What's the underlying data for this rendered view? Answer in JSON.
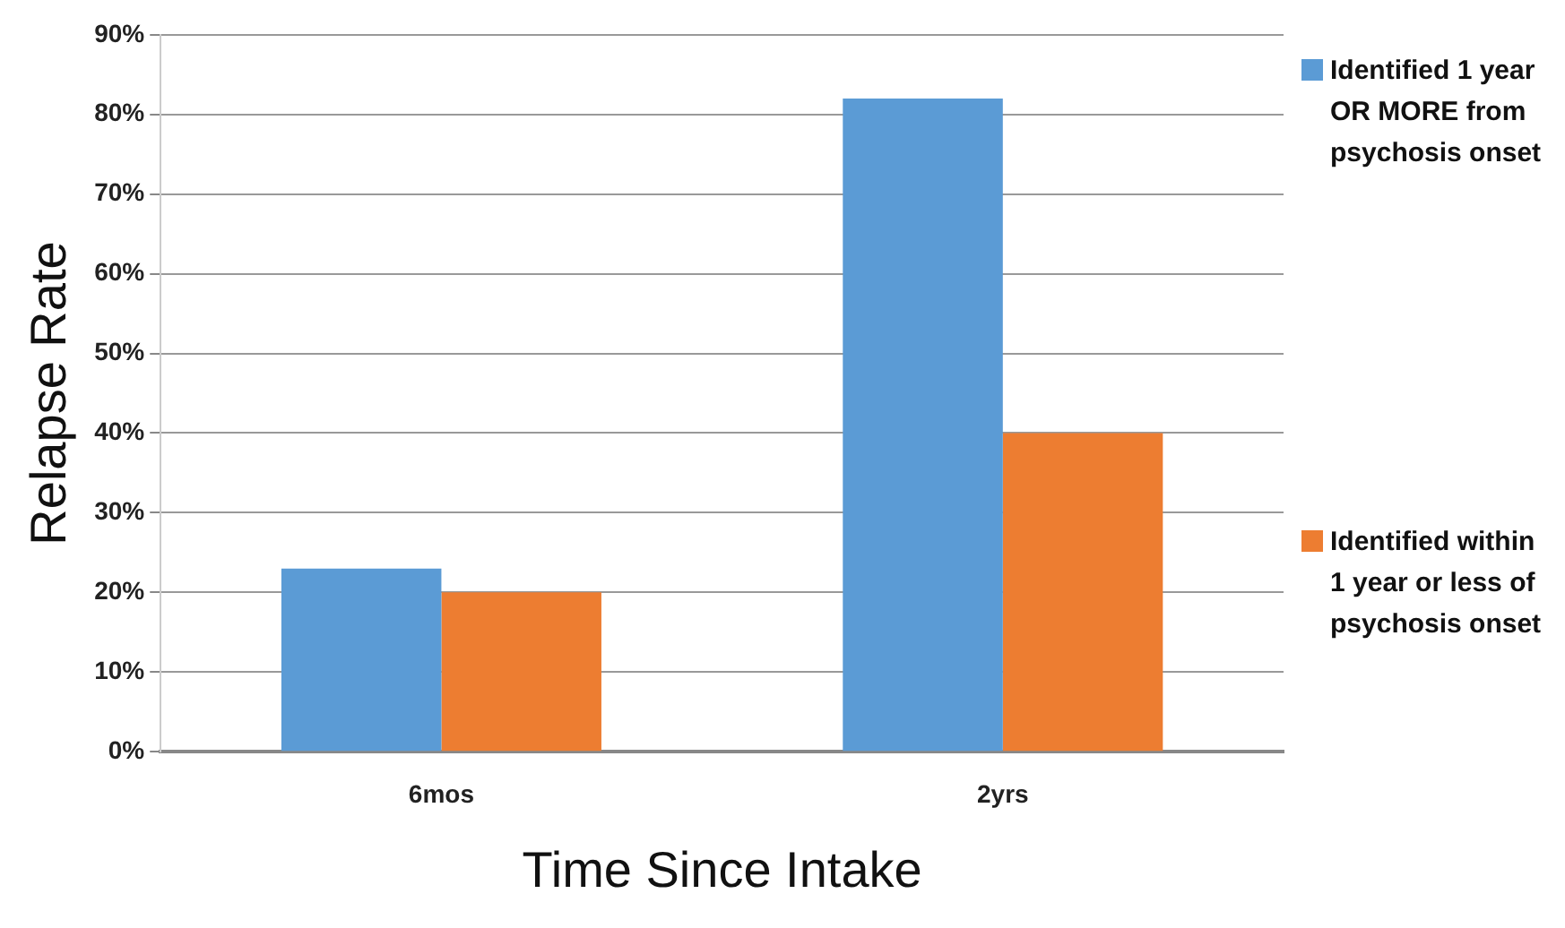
{
  "chart_data": {
    "type": "bar",
    "xlabel": "Time Since Intake",
    "ylabel": "Relapse Rate",
    "categories": [
      "6mos",
      "2yrs"
    ],
    "series": [
      {
        "name": "Identified 1 year OR MORE from psychosis onset",
        "color": "#5b9bd5",
        "values": [
          23,
          82
        ]
      },
      {
        "name": "Identified within 1 year or less of psychosis onset",
        "color": "#ed7d31",
        "values": [
          20,
          40
        ]
      }
    ],
    "ylim": [
      0,
      90
    ],
    "yticks": [
      {
        "value": 0,
        "label": "0%"
      },
      {
        "value": 10,
        "label": "10%"
      },
      {
        "value": 20,
        "label": "20%"
      },
      {
        "value": 30,
        "label": "30%"
      },
      {
        "value": 40,
        "label": "40%"
      },
      {
        "value": 50,
        "label": "50%"
      },
      {
        "value": 60,
        "label": "60%"
      },
      {
        "value": 70,
        "label": "70%"
      },
      {
        "value": 80,
        "label": "80%"
      },
      {
        "value": 90,
        "label": "90%"
      }
    ],
    "grid": "y",
    "legend": "right"
  }
}
